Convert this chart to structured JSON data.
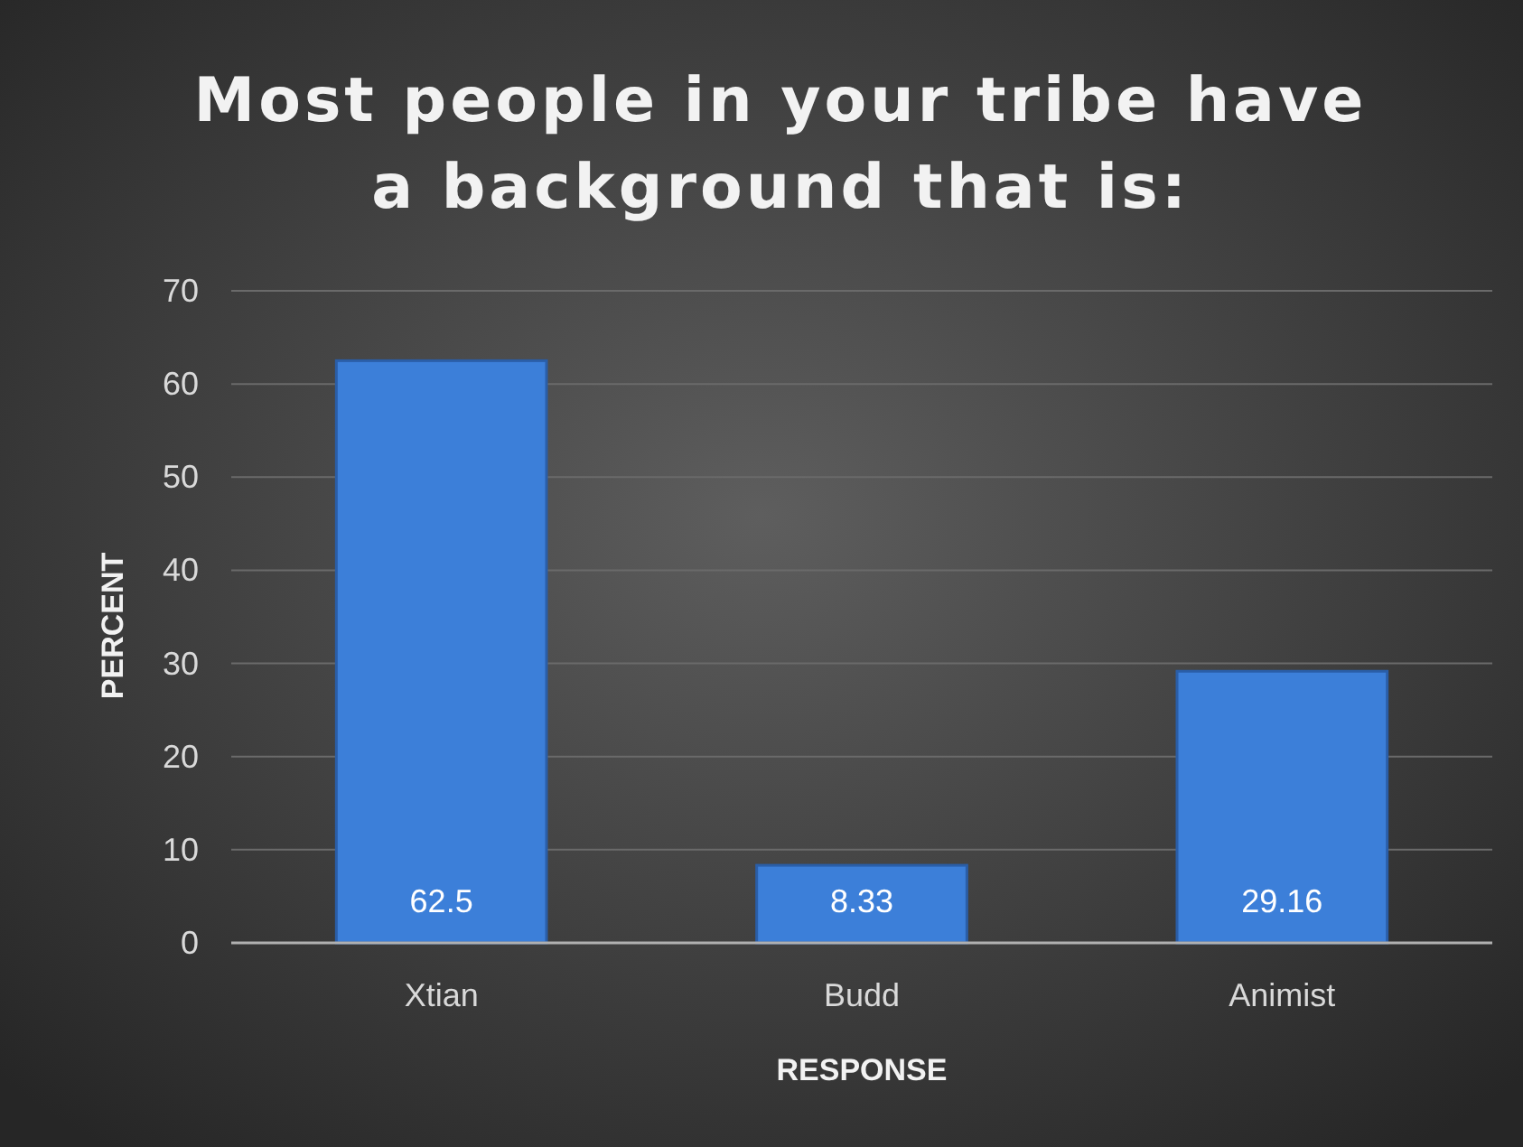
{
  "chart_data": {
    "type": "bar",
    "title": "Most people in your tribe have a background that is:",
    "xlabel": "RESPONSE",
    "ylabel": "PERCENT",
    "categories": [
      "Xtian",
      "Budd",
      "Animist"
    ],
    "values": [
      62.5,
      8.33,
      29.16
    ],
    "color": "#3c7fd9",
    "ylim": [
      0,
      70
    ],
    "yticks": [
      0,
      10,
      20,
      30,
      40,
      50,
      60,
      70
    ],
    "grid": "y",
    "data_labels": true
  }
}
